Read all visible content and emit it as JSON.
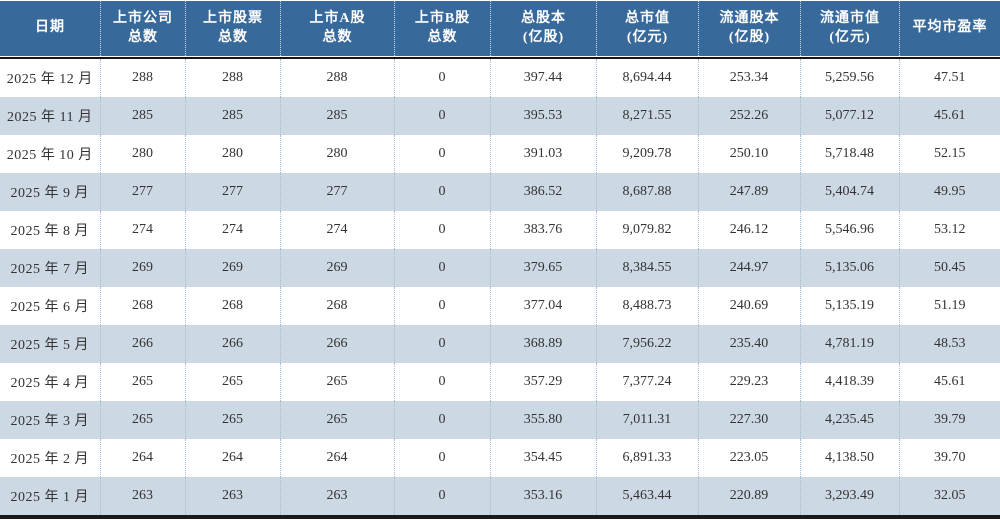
{
  "colors": {
    "header_bg": "#38699B",
    "header_text": "#ffffff",
    "alt_row_bg": "#CCD9E4",
    "row_bg": "#ffffff",
    "body_text": "#333333",
    "body_divider": "#a7bcce",
    "header_divider": "#cfdde9",
    "header_rule": "#15151a",
    "bottom_rule": "#1a1a1a"
  },
  "table": {
    "header": [
      {
        "line1": "日期",
        "line2": ""
      },
      {
        "line1": "上市公司",
        "line2": "总数"
      },
      {
        "line1": "上市股票",
        "line2": "总数"
      },
      {
        "line1": "上市A股",
        "line2": "总数"
      },
      {
        "line1": "上市B股",
        "line2": "总数"
      },
      {
        "line1": "总股本",
        "line2": "(亿股)"
      },
      {
        "line1": "总市值",
        "line2": "(亿元)"
      },
      {
        "line1": "流通股本",
        "line2": "(亿股)"
      },
      {
        "line1": "流通市值",
        "line2": "(亿元)"
      },
      {
        "line1": "平均市盈率",
        "line2": ""
      }
    ]
  },
  "chart_data": {
    "type": "table",
    "columns": [
      "日期",
      "上市公司总数",
      "上市股票总数",
      "上市A股总数",
      "上市B股总数",
      "总股本(亿股)",
      "总市值(亿元)",
      "流通股本(亿股)",
      "流通市值(亿元)",
      "平均市盈率"
    ],
    "rows": [
      [
        "2025 年 12 月",
        "288",
        "288",
        "288",
        "0",
        "397.44",
        "8,694.44",
        "253.34",
        "5,259.56",
        "47.51"
      ],
      [
        "2025 年 11 月",
        "285",
        "285",
        "285",
        "0",
        "395.53",
        "8,271.55",
        "252.26",
        "5,077.12",
        "45.61"
      ],
      [
        "2025 年 10 月",
        "280",
        "280",
        "280",
        "0",
        "391.03",
        "9,209.78",
        "250.10",
        "5,718.48",
        "52.15"
      ],
      [
        "2025 年 9 月",
        "277",
        "277",
        "277",
        "0",
        "386.52",
        "8,687.88",
        "247.89",
        "5,404.74",
        "49.95"
      ],
      [
        "2025 年 8 月",
        "274",
        "274",
        "274",
        "0",
        "383.76",
        "9,079.82",
        "246.12",
        "5,546.96",
        "53.12"
      ],
      [
        "2025 年 7 月",
        "269",
        "269",
        "269",
        "0",
        "379.65",
        "8,384.55",
        "244.97",
        "5,135.06",
        "50.45"
      ],
      [
        "2025 年 6 月",
        "268",
        "268",
        "268",
        "0",
        "377.04",
        "8,488.73",
        "240.69",
        "5,135.19",
        "51.19"
      ],
      [
        "2025 年 5 月",
        "266",
        "266",
        "266",
        "0",
        "368.89",
        "7,956.22",
        "235.40",
        "4,781.19",
        "48.53"
      ],
      [
        "2025 年 4 月",
        "265",
        "265",
        "265",
        "0",
        "357.29",
        "7,377.24",
        "229.23",
        "4,418.39",
        "45.61"
      ],
      [
        "2025 年 3 月",
        "265",
        "265",
        "265",
        "0",
        "355.80",
        "7,011.31",
        "227.30",
        "4,235.45",
        "39.79"
      ],
      [
        "2025 年 2 月",
        "264",
        "264",
        "264",
        "0",
        "354.45",
        "6,891.33",
        "223.05",
        "4,138.50",
        "39.70"
      ],
      [
        "2025 年 1 月",
        "263",
        "263",
        "263",
        "0",
        "353.16",
        "5,463.44",
        "220.89",
        "3,293.49",
        "32.05"
      ]
    ]
  }
}
